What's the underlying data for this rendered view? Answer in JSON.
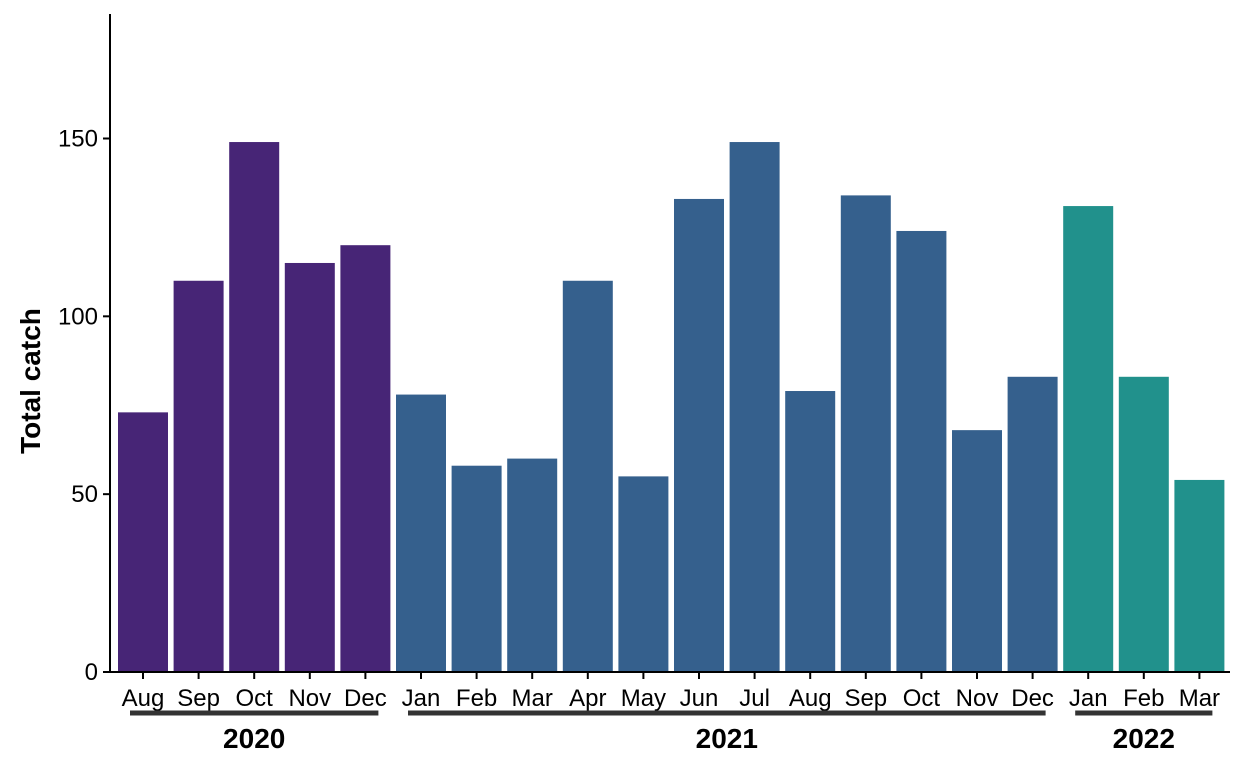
{
  "chart_data": {
    "type": "bar",
    "ylabel": "Total catch",
    "ylim": [
      0,
      185
    ],
    "yticks": [
      0,
      50,
      100,
      150
    ],
    "categories": [
      "Aug",
      "Sep",
      "Oct",
      "Nov",
      "Dec",
      "Jan",
      "Feb",
      "Mar",
      "Apr",
      "May",
      "Jun",
      "Jul",
      "Aug",
      "Sep",
      "Oct",
      "Nov",
      "Dec",
      "Jan",
      "Feb",
      "Mar"
    ],
    "values": [
      73,
      110,
      149,
      115,
      120,
      78,
      58,
      60,
      110,
      55,
      133,
      149,
      79,
      134,
      124,
      68,
      83,
      131,
      83,
      54
    ],
    "groups": [
      {
        "label": "2020",
        "start": 0,
        "end": 4,
        "color": "#472576"
      },
      {
        "label": "2021",
        "start": 5,
        "end": 16,
        "color": "#35608d"
      },
      {
        "label": "2022",
        "start": 17,
        "end": 19,
        "color": "#21918c"
      }
    ],
    "grid": false,
    "legend": "none"
  }
}
